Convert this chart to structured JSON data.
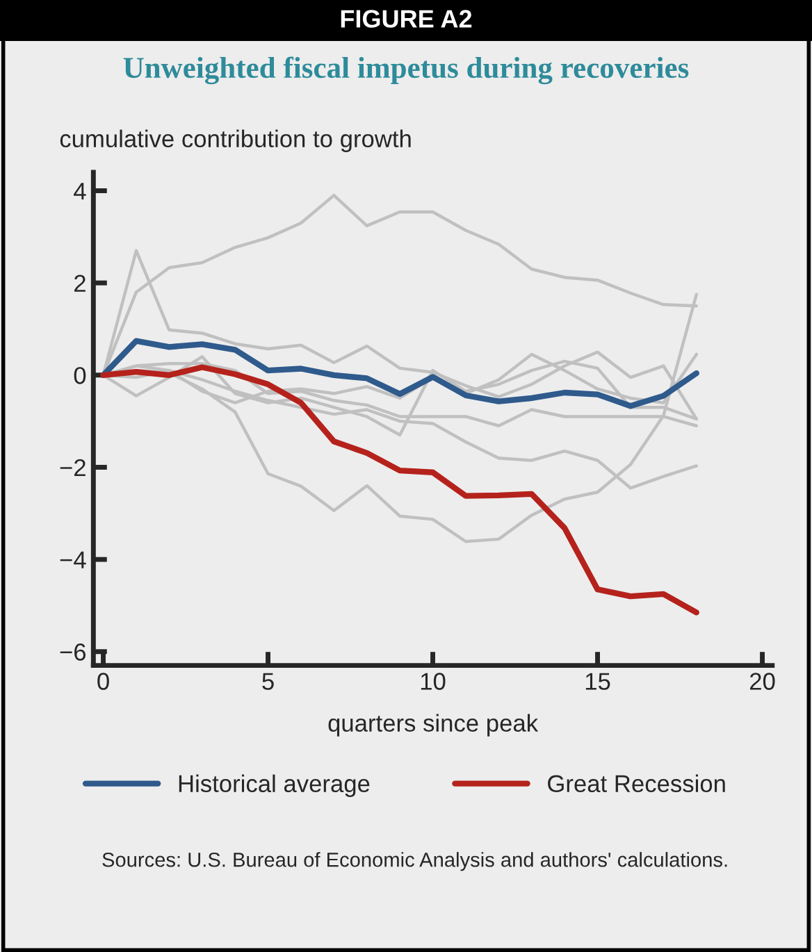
{
  "chart_data": {
    "type": "line",
    "title": "FIGURE A2",
    "subtitle": "Unweighted fiscal impetus during recoveries",
    "ylabel": "cumulative contribution to growth",
    "xlabel": "quarters since peak",
    "x": [
      0,
      1,
      2,
      3,
      4,
      5,
      6,
      7,
      8,
      9,
      10,
      11,
      12,
      13,
      14,
      15,
      16,
      17,
      18
    ],
    "series": [
      {
        "color": "#c0c0c0",
        "values": [
          0,
          1.8,
          2.33,
          2.44,
          2.77,
          2.98,
          3.3,
          3.9,
          3.24,
          3.54,
          3.54,
          3.14,
          2.84,
          2.3,
          2.12,
          2.06,
          1.78,
          1.53,
          1.5
        ]
      },
      {
        "color": "#c0c0c0",
        "values": [
          0,
          2.7,
          0.98,
          0.91,
          0.68,
          0.57,
          0.65,
          0.27,
          0.63,
          0.15,
          0.06,
          -0.23,
          -0.47,
          -0.2,
          0.2,
          0.5,
          -0.05,
          0.2,
          -0.95
        ]
      },
      {
        "color": "#c0c0c0",
        "values": [
          0,
          0.1,
          0.05,
          -0.3,
          -0.8,
          -2.14,
          -2.41,
          -2.94,
          -2.4,
          -3.06,
          -3.13,
          -3.61,
          -3.56,
          -3.04,
          -2.69,
          -2.54,
          -1.94,
          -0.88,
          1.75
        ]
      },
      {
        "color": "#c0c0c0",
        "values": [
          0,
          -0.05,
          0.1,
          -0.1,
          -0.35,
          -0.55,
          -0.7,
          -0.85,
          -0.75,
          -1.0,
          -1.05,
          -1.45,
          -1.8,
          -1.85,
          -1.65,
          -1.85,
          -2.45,
          -2.2,
          -1.97
        ]
      },
      {
        "color": "#c0c0c0",
        "values": [
          0,
          0.2,
          0.25,
          0.25,
          0.1,
          -0.4,
          -0.35,
          -0.55,
          -0.65,
          -0.9,
          -0.9,
          -0.9,
          -1.1,
          -0.75,
          -0.9,
          -0.9,
          -0.9,
          -0.9,
          -1.1
        ]
      },
      {
        "color": "#c0c0c0",
        "values": [
          0,
          -0.45,
          -0.05,
          0.4,
          -0.4,
          -0.6,
          -0.5,
          -0.7,
          -0.9,
          -1.3,
          0.1,
          -0.35,
          -0.2,
          0.1,
          0.3,
          0.15,
          -0.7,
          -0.7,
          -0.95
        ]
      },
      {
        "color": "#c0c0c0",
        "values": [
          0,
          0.2,
          0.1,
          -0.35,
          -0.6,
          -0.35,
          -0.3,
          -0.4,
          -0.25,
          -0.5,
          -0.05,
          -0.4,
          -0.1,
          0.45,
          0.1,
          -0.3,
          -0.5,
          -0.6,
          0.45
        ]
      },
      {
        "name": "Historical average",
        "color": "#2f5a8c",
        "values": [
          0,
          0.74,
          0.61,
          0.67,
          0.55,
          0.1,
          0.14,
          0,
          -0.07,
          -0.41,
          -0.04,
          -0.44,
          -0.57,
          -0.5,
          -0.38,
          -0.42,
          -0.67,
          -0.45,
          0.04
        ]
      },
      {
        "name": "Great Recession",
        "color": "#b5221c",
        "values": [
          0,
          0.07,
          0,
          0.17,
          0.02,
          -0.2,
          -0.6,
          -1.44,
          -1.69,
          -2.07,
          -2.11,
          -2.62,
          -2.61,
          -2.58,
          -3.32,
          -4.65,
          -4.8,
          -4.75,
          -5.15
        ]
      }
    ],
    "xlim": [
      -0.3,
      20.3
    ],
    "xticks": [
      0,
      5,
      10,
      15,
      20
    ],
    "ylim": [
      -6.3,
      4.4
    ],
    "yticks": [
      {
        "value": -6,
        "label": "−6"
      },
      {
        "value": -4,
        "label": "−4"
      },
      {
        "value": -2,
        "label": "−2"
      },
      0,
      2,
      4
    ],
    "grid": false,
    "legend": "bottom",
    "marker": "none",
    "line_style": "solid",
    "annotations": [
      "Sources: U.S. Bureau of Economic Analysis and authors' calculations."
    ]
  }
}
